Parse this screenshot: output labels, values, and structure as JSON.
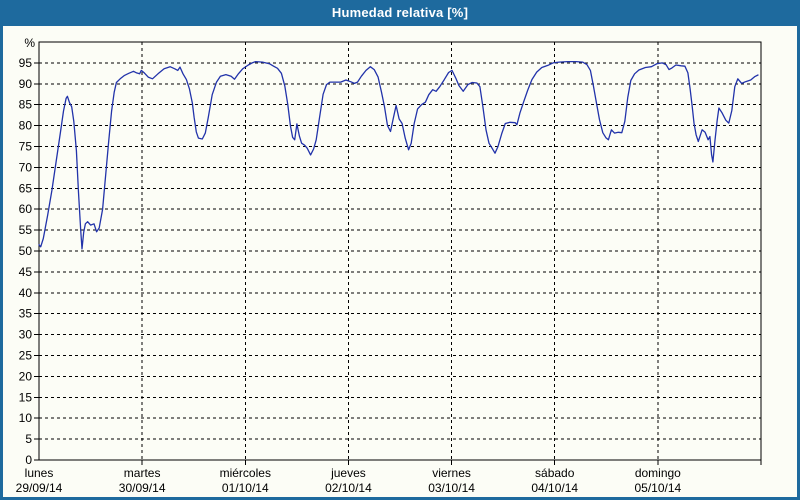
{
  "window": {
    "title": "Humedad relativa [%]"
  },
  "colors": {
    "frame": "#1e6a9e",
    "panel_bg": "#fcfdf6",
    "grid": "#000000",
    "axis": "#000000",
    "series": "#2233aa",
    "title_text": "#ffffff",
    "label_text": "#000000"
  },
  "chart_data": {
    "type": "line",
    "title": "Humedad relativa [%]",
    "ylabel": "%",
    "ylim": [
      0,
      100
    ],
    "y_tick_step": 5,
    "y_tick_labels": [
      "0",
      "5",
      "10",
      "15",
      "20",
      "25",
      "30",
      "35",
      "40",
      "45",
      "50",
      "55",
      "60",
      "65",
      "70",
      "75",
      "80",
      "85",
      "90",
      "95"
    ],
    "grid": "dashed",
    "legend_position": "none",
    "x_unit": "hours",
    "x_range": [
      0,
      168
    ],
    "x_axis_days": [
      {
        "name": "lunes",
        "date": "29/09/14"
      },
      {
        "name": "martes",
        "date": "30/09/14"
      },
      {
        "name": "miércoles",
        "date": "01/10/14"
      },
      {
        "name": "jueves",
        "date": "02/10/14"
      },
      {
        "name": "viernes",
        "date": "03/10/14"
      },
      {
        "name": "sábado",
        "date": "04/10/14"
      },
      {
        "name": "domingo",
        "date": "05/10/14"
      }
    ],
    "series": [
      {
        "name": "Humedad relativa [%]",
        "color": "#2233aa",
        "points": [
          [
            0,
            51.5
          ],
          [
            0.4,
            51
          ],
          [
            1,
            53
          ],
          [
            2,
            58.5
          ],
          [
            3,
            64.5
          ],
          [
            4,
            71.5
          ],
          [
            5,
            78.5
          ],
          [
            5.7,
            83.5
          ],
          [
            6.3,
            86.5
          ],
          [
            6.6,
            87
          ],
          [
            7.1,
            85.5
          ],
          [
            7.6,
            84.5
          ],
          [
            8.1,
            81
          ],
          [
            8.7,
            74
          ],
          [
            9.2,
            64
          ],
          [
            9.7,
            55
          ],
          [
            10,
            50.5
          ],
          [
            10.4,
            54.5
          ],
          [
            10.8,
            56.5
          ],
          [
            11.3,
            57
          ],
          [
            12,
            56.2
          ],
          [
            12.8,
            56.5
          ],
          [
            13.4,
            54.6
          ],
          [
            14,
            55.5
          ],
          [
            14.8,
            60
          ],
          [
            15.5,
            68
          ],
          [
            16.2,
            76
          ],
          [
            16.9,
            83.5
          ],
          [
            17.5,
            88
          ],
          [
            18,
            90.3
          ],
          [
            18.9,
            91.2
          ],
          [
            19.9,
            92
          ],
          [
            20.9,
            92.5
          ],
          [
            22,
            93
          ],
          [
            22.7,
            92.6
          ],
          [
            23.4,
            92.4
          ],
          [
            23.8,
            93.2
          ],
          [
            24.5,
            92.6
          ],
          [
            25.4,
            91.6
          ],
          [
            26.4,
            91.2
          ],
          [
            27.7,
            92.4
          ],
          [
            29.1,
            93.6
          ],
          [
            30.5,
            94.1
          ],
          [
            31.6,
            93.6
          ],
          [
            32.3,
            93.2
          ],
          [
            32.8,
            94
          ],
          [
            33.5,
            92.4
          ],
          [
            34.3,
            91
          ],
          [
            35,
            88.8
          ],
          [
            35.7,
            85.3
          ],
          [
            36.1,
            82
          ],
          [
            36.6,
            78.5
          ],
          [
            37.1,
            77
          ],
          [
            38,
            76.8
          ],
          [
            38.7,
            78.2
          ],
          [
            39.4,
            82
          ],
          [
            40.3,
            87.4
          ],
          [
            41.3,
            90.4
          ],
          [
            42.2,
            91.8
          ],
          [
            43.5,
            92.2
          ],
          [
            44.7,
            91.8
          ],
          [
            45.5,
            91.1
          ],
          [
            46.4,
            92.4
          ],
          [
            47.4,
            93.6
          ],
          [
            48.7,
            94.5
          ],
          [
            49.6,
            95
          ],
          [
            50.4,
            95.3
          ],
          [
            52,
            95.2
          ],
          [
            53.6,
            94.8
          ],
          [
            54.6,
            94.2
          ],
          [
            55.5,
            93.7
          ],
          [
            56.4,
            92.5
          ],
          [
            57.2,
            89.5
          ],
          [
            57.9,
            85
          ],
          [
            58.5,
            80
          ],
          [
            59,
            77.2
          ],
          [
            59.5,
            76.6
          ],
          [
            60,
            80.4
          ],
          [
            60.6,
            77.5
          ],
          [
            61.1,
            75.8
          ],
          [
            61.8,
            75.3
          ],
          [
            62.4,
            74.6
          ],
          [
            63.2,
            73
          ],
          [
            63.9,
            74.4
          ],
          [
            64.5,
            76.6
          ],
          [
            65.3,
            82
          ],
          [
            66.1,
            87.5
          ],
          [
            66.9,
            89.8
          ],
          [
            67.7,
            90.4
          ],
          [
            69,
            90.4
          ],
          [
            70.2,
            90.4
          ],
          [
            71.4,
            90.9
          ],
          [
            72.5,
            90.5
          ],
          [
            73.4,
            90.1
          ],
          [
            74.1,
            90.4
          ],
          [
            75,
            91.8
          ],
          [
            76.1,
            93.2
          ],
          [
            77.1,
            94.1
          ],
          [
            78,
            93.4
          ],
          [
            78.9,
            91.6
          ],
          [
            79.7,
            88
          ],
          [
            80.4,
            84.5
          ],
          [
            81.1,
            80
          ],
          [
            81.8,
            78.6
          ],
          [
            82.4,
            81.5
          ],
          [
            83.1,
            84.8
          ],
          [
            83.8,
            81.6
          ],
          [
            84.5,
            80.5
          ],
          [
            85.2,
            77
          ],
          [
            86,
            74.2
          ],
          [
            86.6,
            75.8
          ],
          [
            87.3,
            80.5
          ],
          [
            88.1,
            84
          ],
          [
            89,
            85
          ],
          [
            89.9,
            85.6
          ],
          [
            90.7,
            87.4
          ],
          [
            91.6,
            88.6
          ],
          [
            92.4,
            88.2
          ],
          [
            93.3,
            89.4
          ],
          [
            94.3,
            91
          ],
          [
            95.3,
            92.7
          ],
          [
            96.1,
            93.2
          ],
          [
            97,
            91.3
          ],
          [
            97.7,
            89.6
          ],
          [
            98.7,
            88.2
          ],
          [
            99.8,
            89.8
          ],
          [
            100.8,
            90.3
          ],
          [
            101.9,
            90.2
          ],
          [
            102.6,
            89.3
          ],
          [
            103.3,
            84.5
          ],
          [
            104,
            79
          ],
          [
            104.7,
            75.8
          ],
          [
            105.6,
            74.3
          ],
          [
            106.1,
            73.4
          ],
          [
            106.8,
            75
          ],
          [
            107.7,
            78.2
          ],
          [
            108.5,
            80.5
          ],
          [
            109.6,
            80.8
          ],
          [
            110.8,
            80.7
          ],
          [
            111.2,
            80.2
          ],
          [
            111.9,
            83
          ],
          [
            112.8,
            85.8
          ],
          [
            113.7,
            88.4
          ],
          [
            114.7,
            91
          ],
          [
            115.8,
            92.8
          ],
          [
            117,
            93.9
          ],
          [
            118.4,
            94.4
          ],
          [
            119.6,
            95
          ],
          [
            121,
            95.2
          ],
          [
            123,
            95.3
          ],
          [
            125,
            95.3
          ],
          [
            126.5,
            95.2
          ],
          [
            127.5,
            94.6
          ],
          [
            128.3,
            93.2
          ],
          [
            129,
            89.5
          ],
          [
            129.7,
            85.5
          ],
          [
            130.4,
            81.5
          ],
          [
            131.2,
            78.3
          ],
          [
            131.9,
            77.1
          ],
          [
            132.5,
            76.6
          ],
          [
            133.2,
            79
          ],
          [
            133.9,
            78.2
          ],
          [
            134.8,
            78.4
          ],
          [
            135.6,
            78.3
          ],
          [
            136.3,
            81
          ],
          [
            137,
            86.8
          ],
          [
            137.7,
            90.8
          ],
          [
            138.6,
            92.4
          ],
          [
            139.6,
            93.3
          ],
          [
            141.1,
            93.9
          ],
          [
            142.5,
            94.1
          ],
          [
            143.8,
            94.8
          ],
          [
            145,
            95
          ],
          [
            145.9,
            94.6
          ],
          [
            146.6,
            93.4
          ],
          [
            147.3,
            93.8
          ],
          [
            148.2,
            94.5
          ],
          [
            149.4,
            94.3
          ],
          [
            150.3,
            94.2
          ],
          [
            151,
            92.6
          ],
          [
            151.5,
            88.8
          ],
          [
            152,
            84.6
          ],
          [
            152.4,
            80.6
          ],
          [
            152.9,
            77.8
          ],
          [
            153.4,
            76.2
          ],
          [
            154.3,
            79
          ],
          [
            155,
            78.4
          ],
          [
            155.7,
            76.6
          ],
          [
            156.1,
            77.4
          ],
          [
            156.5,
            73
          ],
          [
            156.8,
            71.3
          ],
          [
            157.3,
            76.5
          ],
          [
            157.8,
            81.3
          ],
          [
            158.2,
            84.2
          ],
          [
            158.9,
            83.1
          ],
          [
            159.8,
            81.3
          ],
          [
            160.5,
            80.6
          ],
          [
            161.2,
            83.6
          ],
          [
            161.9,
            89.3
          ],
          [
            162.6,
            91.2
          ],
          [
            163.5,
            90.1
          ],
          [
            164.4,
            90.5
          ],
          [
            165.6,
            90.9
          ],
          [
            166.5,
            91.7
          ],
          [
            167.3,
            92.1
          ]
        ]
      }
    ]
  }
}
